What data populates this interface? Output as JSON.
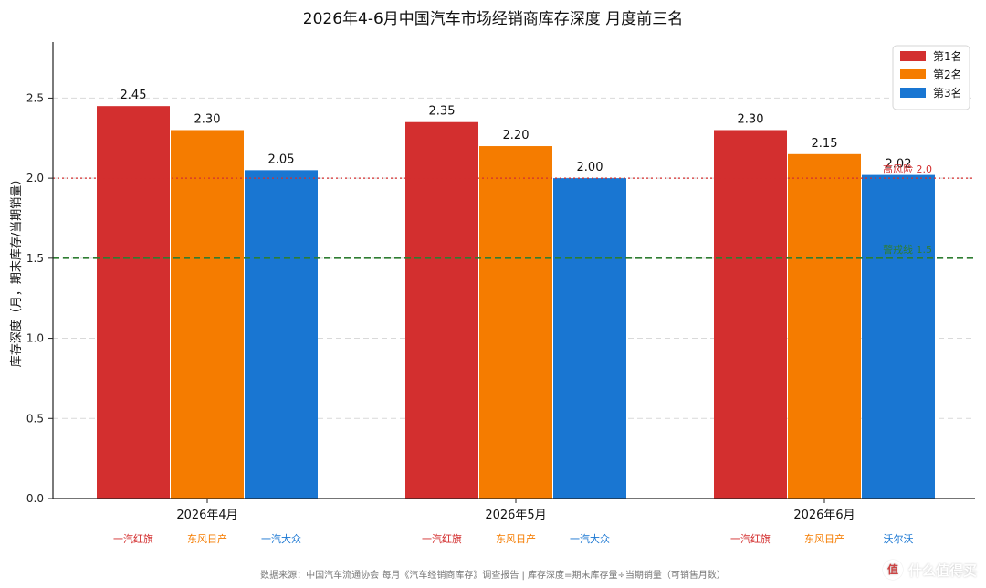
{
  "header": {
    "title": "2026年4-6月中国汽车市场经销商库存深度 月度前三名"
  },
  "footer": {
    "note": "数据来源：中国汽车流通协会 每月《汽车经销商库存》调查报告 | 库存深度=期末库存量÷当期销量（可销售月数）",
    "watermark": "什么值得买"
  },
  "chart_data": {
    "type": "bar",
    "title": "2026年4-6月中国汽车市场经销商库存深度 月度前三名",
    "xlabel": "",
    "ylabel": "库存深度（月，期末库存/当期销量）",
    "ylim": [
      0,
      2.85
    ],
    "yticks": [
      "0.0",
      "0.5",
      "1.0",
      "1.5",
      "2.0",
      "2.5"
    ],
    "grid": true,
    "legend_position": "top-right",
    "categories": [
      "2026年4月",
      "2026年5月",
      "2026年6月"
    ],
    "series": [
      {
        "name": "第1名",
        "color": "#D32F2F",
        "values": [
          2.45,
          2.35,
          2.3
        ],
        "labels": [
          "2.45",
          "2.35",
          "2.30"
        ],
        "brands": [
          "一汽红旗",
          "一汽红旗",
          "一汽红旗"
        ]
      },
      {
        "name": "第2名",
        "color": "#F57C00",
        "values": [
          2.3,
          2.2,
          2.15
        ],
        "labels": [
          "2.30",
          "2.20",
          "2.15"
        ],
        "brands": [
          "东风日产",
          "东风日产",
          "东风日产"
        ]
      },
      {
        "name": "第3名",
        "color": "#1976D2",
        "values": [
          2.05,
          2.0,
          2.02
        ],
        "labels": [
          "2.05",
          "2.00",
          "2.02"
        ],
        "brands": [
          "一汽大众",
          "一汽大众",
          "沃尔沃"
        ]
      }
    ],
    "reference_lines": [
      {
        "value": 2.0,
        "label": "高风险 2.0",
        "color": "#D32F2F",
        "style": "dotted"
      },
      {
        "value": 1.5,
        "label": "警戒线 1.5",
        "color": "#2E7D32",
        "style": "dashed"
      }
    ]
  }
}
